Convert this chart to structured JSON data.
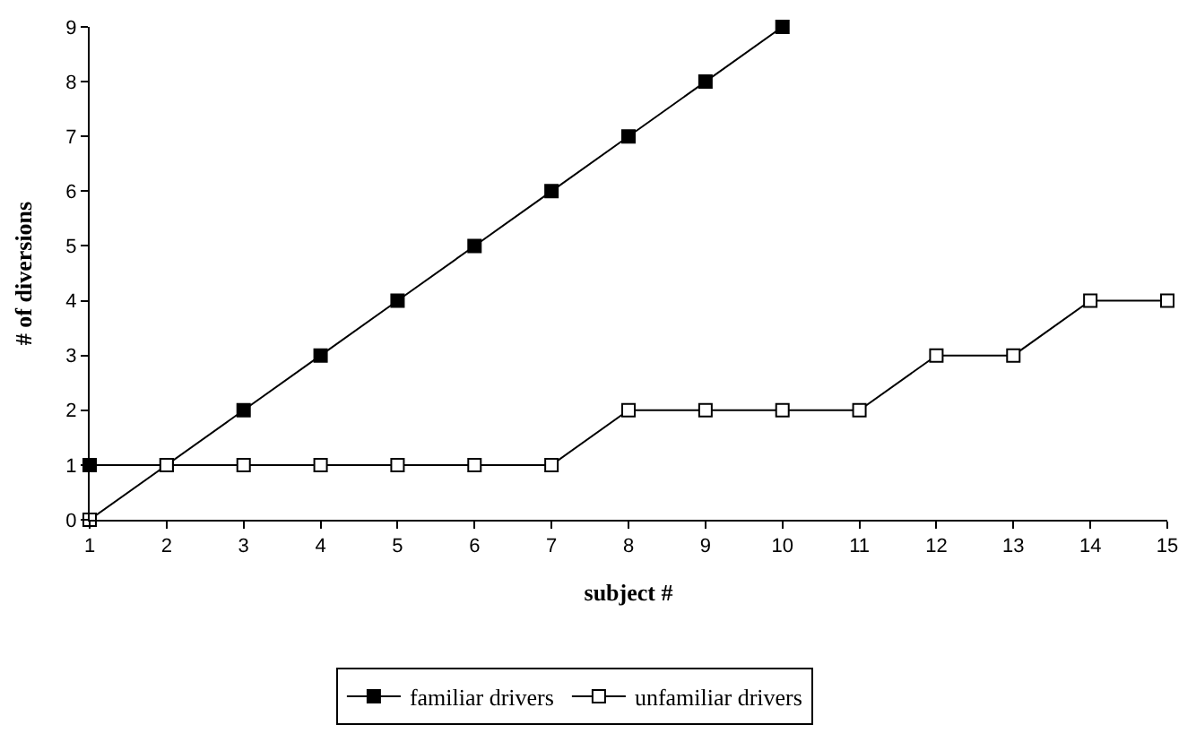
{
  "chart_data": {
    "type": "line",
    "xlabel": "subject #",
    "ylabel": "# of diversions",
    "xlim": [
      1,
      15
    ],
    "xticks": [
      1,
      2,
      3,
      4,
      5,
      6,
      7,
      8,
      9,
      10,
      11,
      12,
      13,
      14,
      15
    ],
    "ylim": [
      0,
      9
    ],
    "yticks": [
      0,
      1,
      2,
      3,
      4,
      5,
      6,
      7,
      8,
      9
    ],
    "legend": "bottom",
    "marker": "square",
    "line_style": "solid",
    "series": [
      {
        "name": "familiar drivers",
        "color": "#000000",
        "x": [
          1,
          2,
          3,
          4,
          5,
          6,
          7,
          8,
          9,
          10
        ],
        "values": [
          1,
          1,
          2,
          3,
          4,
          5,
          6,
          7,
          8,
          9
        ]
      },
      {
        "name": "unfamiliar drivers",
        "color": "#000000",
        "x": [
          1,
          2,
          3,
          4,
          5,
          6,
          7,
          8,
          9,
          10,
          11,
          12,
          13,
          14,
          15
        ],
        "values": [
          0,
          1,
          1,
          1,
          1,
          1,
          1,
          2,
          2,
          2,
          2,
          3,
          3,
          4,
          4
        ]
      }
    ]
  }
}
